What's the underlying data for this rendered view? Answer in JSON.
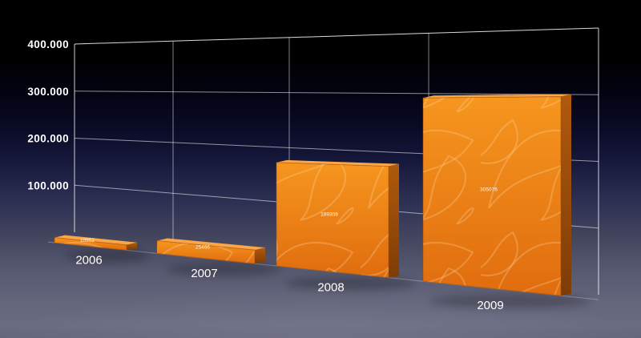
{
  "chart_data": {
    "type": "bar",
    "style": "3d-perspective",
    "title": "",
    "categories": [
      "2006",
      "2007",
      "2008",
      "2009"
    ],
    "values": [
      10952,
      25466,
      189308,
      305076
    ],
    "value_labels": [
      "10952",
      "25466",
      "189308",
      "305076"
    ],
    "y_tick_labels": [
      "100.000",
      "200.000",
      "300.000",
      "400.000"
    ],
    "y_tick_values": [
      100000,
      200000,
      300000,
      400000
    ],
    "ylim": [
      0,
      400000
    ],
    "grid": true,
    "legend": false,
    "colors": {
      "bar_front_top": "#F6961F",
      "bar_front_bottom": "#E06C0E",
      "bar_side_top": "#B05A0C",
      "bar_side_bottom": "#7E3C06",
      "bar_top_face": "#FCA64A",
      "bar_outline": "#9A4D08",
      "swirl_pattern": "#FFD9A8",
      "grid_line": "#FFFFFF",
      "text": "#FFFFFF",
      "background_top": "#000000",
      "background_bottom": "#6A6C81"
    }
  }
}
